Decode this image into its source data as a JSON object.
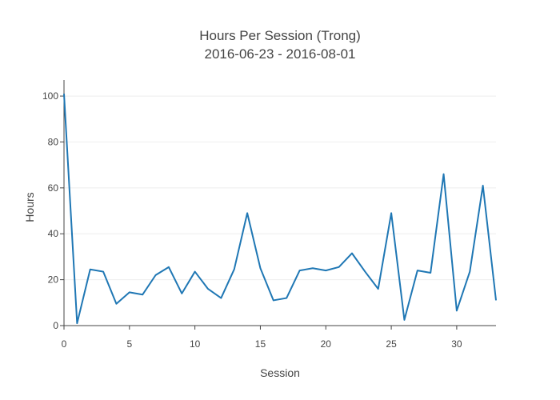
{
  "chart_data": {
    "type": "line",
    "title": "Hours Per Session (Trong)",
    "subtitle": "2016-06-23 - 2016-08-01",
    "xlabel": "Session",
    "ylabel": "Hours",
    "xlim": [
      0,
      33
    ],
    "ylim": [
      0,
      107
    ],
    "x_ticks": [
      0,
      5,
      10,
      15,
      20,
      25,
      30
    ],
    "y_ticks": [
      0,
      20,
      40,
      60,
      80,
      100
    ],
    "grid": true,
    "x": [
      0,
      1,
      2,
      3,
      4,
      5,
      6,
      7,
      8,
      9,
      10,
      11,
      12,
      13,
      14,
      15,
      16,
      17,
      18,
      19,
      20,
      21,
      22,
      23,
      24,
      25,
      26,
      27,
      28,
      29,
      30,
      31,
      32,
      33
    ],
    "series": [
      {
        "color": "#1f77b4",
        "values": [
          101,
          1,
          24.5,
          23.5,
          9.5,
          14.5,
          13.5,
          22,
          25.5,
          14,
          23.5,
          16,
          12,
          24.5,
          49,
          25,
          11,
          12,
          24,
          25,
          24,
          25.5,
          31.5,
          23.5,
          16,
          49,
          2.5,
          24,
          23,
          66,
          6.5,
          23.5,
          61,
          11
        ]
      }
    ]
  }
}
